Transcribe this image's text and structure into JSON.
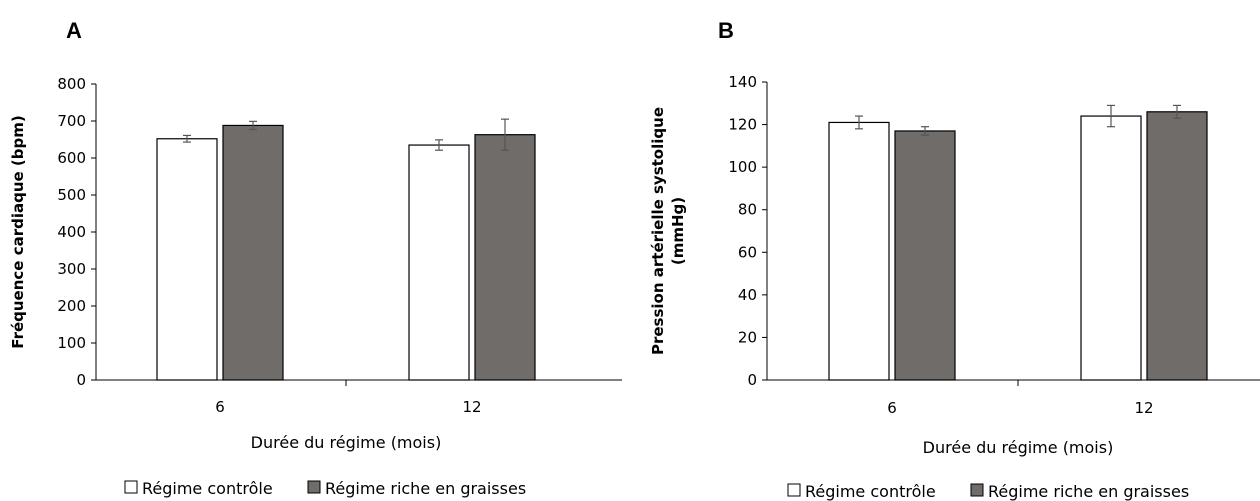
{
  "panels": [
    {
      "letter": "A"
    },
    {
      "letter": "B"
    }
  ],
  "colors": {
    "control_fill": "#ffffff",
    "highfat_fill": "#706c6a",
    "bar_stroke": "#000000",
    "error_bar": "#555555"
  },
  "chart_data": [
    {
      "type": "bar",
      "panel": "A",
      "categories": [
        "6",
        "12"
      ],
      "xlabel": "Durée du régime (mois)",
      "ylabel": "Fréquence cardiaque (bpm)",
      "ylim": [
        0,
        800
      ],
      "yticks": [
        "0",
        "100",
        "200",
        "300",
        "400",
        "500",
        "600",
        "700",
        "800"
      ],
      "grid": false,
      "legend_position": "bottom",
      "series": [
        {
          "name": "Régime contrôle",
          "values": [
            652,
            635
          ],
          "errors": [
            9,
            14
          ],
          "color": "#ffffff"
        },
        {
          "name": "Régime riche en graisses",
          "values": [
            688,
            663
          ],
          "errors": [
            11,
            42
          ],
          "color": "#706c6a"
        }
      ]
    },
    {
      "type": "bar",
      "panel": "B",
      "categories": [
        "6",
        "12"
      ],
      "xlabel": "Durée du régime (mois)",
      "ylabel": [
        "Pression artérielle systolique",
        "(mmHg)"
      ],
      "ylim": [
        0,
        140
      ],
      "yticks": [
        "0",
        "20",
        "40",
        "60",
        "80",
        "100",
        "120",
        "140"
      ],
      "grid": false,
      "legend_position": "bottom",
      "series": [
        {
          "name": "Régime contrôle",
          "values": [
            121,
            124
          ],
          "errors": [
            3,
            5
          ],
          "color": "#ffffff"
        },
        {
          "name": "Régime riche en graisses",
          "values": [
            117,
            126
          ],
          "errors": [
            2,
            3
          ],
          "color": "#706c6a"
        }
      ]
    }
  ]
}
